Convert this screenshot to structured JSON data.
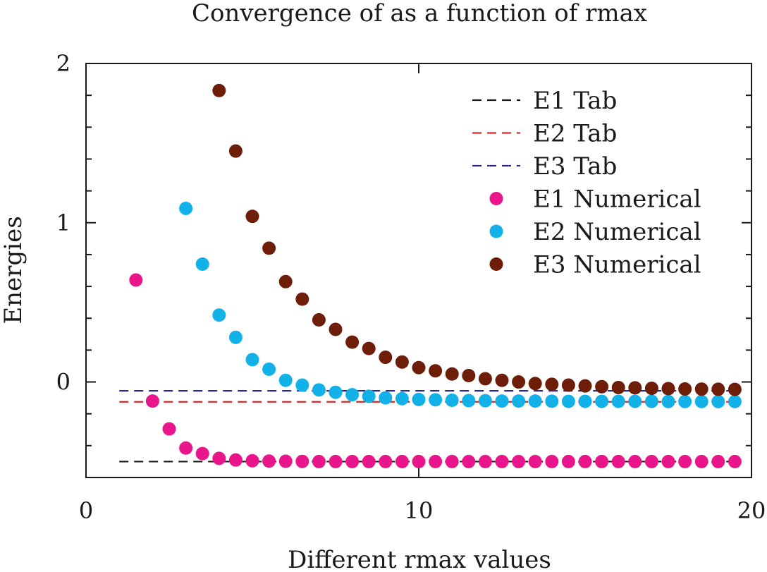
{
  "chart_data": {
    "type": "scatter",
    "title": "Convergence of as a function of rmax",
    "xlabel": "Different rmax values",
    "ylabel": "Energies",
    "xlim": [
      0,
      20
    ],
    "ylim": [
      -0.6,
      2
    ],
    "x_ticks": [
      0,
      10,
      20
    ],
    "y_ticks": [
      0,
      1,
      2
    ],
    "x_tick_labels": [
      "0",
      "10",
      "20"
    ],
    "y_tick_labels": [
      "0",
      "1",
      "2"
    ],
    "legend_position": "top-right",
    "grid": false,
    "reference_lines": [
      {
        "name": "E1 Tab",
        "value": -0.5,
        "x_range": [
          1,
          19.5
        ],
        "color": "#1a1a1a",
        "style": "dashed"
      },
      {
        "name": "E2 Tab",
        "value": -0.125,
        "x_range": [
          1,
          19.5
        ],
        "color": "#d62728",
        "style": "dashed"
      },
      {
        "name": "E3 Tab",
        "value": -0.0556,
        "x_range": [
          1,
          19.5
        ],
        "color": "#2b2d84",
        "style": "dashed"
      }
    ],
    "series": [
      {
        "name": "E1 Numerical",
        "color": "#e8168a",
        "x": [
          1.5,
          2.0,
          2.5,
          3.0,
          3.5,
          4.0,
          4.5,
          5.0,
          5.5,
          6.0,
          6.5,
          7.0,
          7.5,
          8.0,
          8.5,
          9.0,
          9.5,
          10.0,
          10.5,
          11.0,
          11.5,
          12.0,
          12.5,
          13.0,
          13.5,
          14.0,
          14.5,
          15.0,
          15.5,
          16.0,
          16.5,
          17.0,
          17.5,
          18.0,
          18.5,
          19.0,
          19.5
        ],
        "y": [
          0.64,
          -0.12,
          -0.295,
          -0.415,
          -0.45,
          -0.48,
          -0.49,
          -0.495,
          -0.497,
          -0.498,
          -0.499,
          -0.5,
          -0.5,
          -0.5,
          -0.5,
          -0.5,
          -0.5,
          -0.5,
          -0.5,
          -0.5,
          -0.5,
          -0.5,
          -0.5,
          -0.5,
          -0.5,
          -0.5,
          -0.5,
          -0.5,
          -0.5,
          -0.5,
          -0.5,
          -0.5,
          -0.5,
          -0.5,
          -0.5,
          -0.5,
          -0.5
        ]
      },
      {
        "name": "E2 Numerical",
        "color": "#12b2e9",
        "x": [
          3.0,
          3.5,
          4.0,
          4.5,
          5.0,
          5.5,
          6.0,
          6.5,
          7.0,
          7.5,
          8.0,
          8.5,
          9.0,
          9.5,
          10.0,
          10.5,
          11.0,
          11.5,
          12.0,
          12.5,
          13.0,
          13.5,
          14.0,
          14.5,
          15.0,
          15.5,
          16.0,
          16.5,
          17.0,
          17.5,
          18.0,
          18.5,
          19.0,
          19.5
        ],
        "y": [
          1.09,
          0.74,
          0.42,
          0.28,
          0.14,
          0.08,
          0.01,
          -0.02,
          -0.05,
          -0.065,
          -0.08,
          -0.09,
          -0.1,
          -0.105,
          -0.11,
          -0.112,
          -0.115,
          -0.117,
          -0.118,
          -0.12,
          -0.12,
          -0.12,
          -0.121,
          -0.122,
          -0.122,
          -0.122,
          -0.122,
          -0.122,
          -0.122,
          -0.123,
          -0.123,
          -0.123,
          -0.123,
          -0.123
        ]
      },
      {
        "name": "E3 Numerical",
        "color": "#6e1d08",
        "x": [
          4.0,
          4.5,
          5.0,
          5.5,
          6.0,
          6.5,
          7.0,
          7.5,
          8.0,
          8.5,
          9.0,
          9.5,
          10.0,
          10.5,
          11.0,
          11.5,
          12.0,
          12.5,
          13.0,
          13.5,
          14.0,
          14.5,
          15.0,
          15.5,
          16.0,
          16.5,
          17.0,
          17.5,
          18.0,
          18.5,
          19.0,
          19.5
        ],
        "y": [
          1.83,
          1.45,
          1.04,
          0.84,
          0.63,
          0.52,
          0.39,
          0.33,
          0.25,
          0.21,
          0.155,
          0.125,
          0.09,
          0.07,
          0.05,
          0.04,
          0.02,
          0.01,
          0.0,
          -0.01,
          -0.015,
          -0.02,
          -0.025,
          -0.03,
          -0.035,
          -0.037,
          -0.04,
          -0.042,
          -0.044,
          -0.045,
          -0.046,
          -0.047
        ]
      }
    ]
  }
}
